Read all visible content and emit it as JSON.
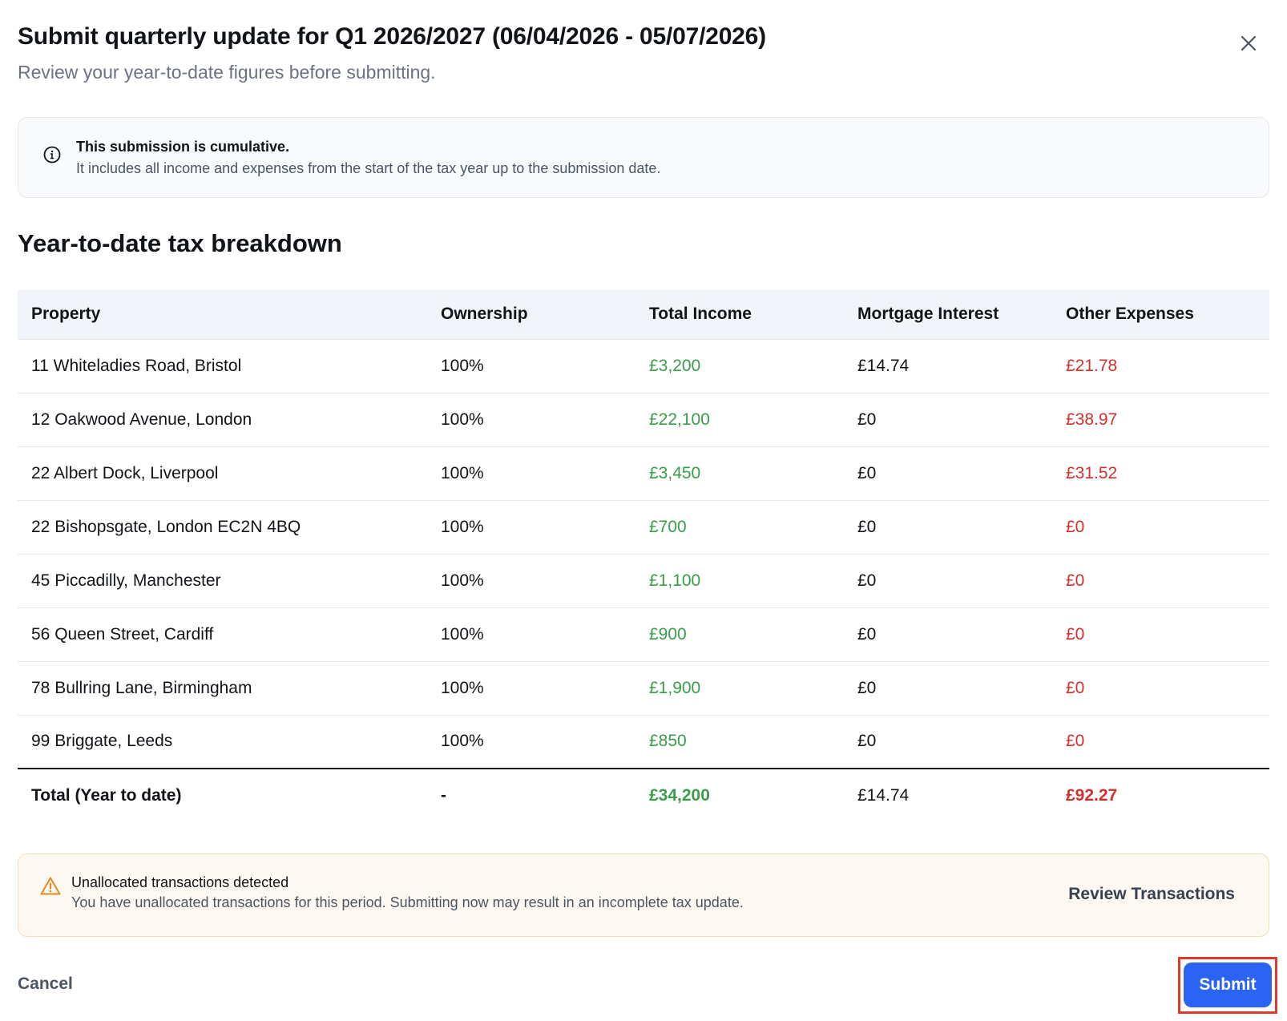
{
  "dialog": {
    "title": "Submit quarterly update for Q1 2026/2027 (06/04/2026 - 05/07/2026)",
    "subtitle": "Review your year-to-date figures before submitting.",
    "close_icon": "close-icon"
  },
  "info": {
    "icon": "info-icon",
    "title": "This submission is cumulative.",
    "text": "It includes all income and expenses from the start of the tax year up to the submission date."
  },
  "breakdown": {
    "heading": "Year-to-date tax breakdown",
    "columns": [
      "Property",
      "Ownership",
      "Total Income",
      "Mortgage Interest",
      "Other Expenses"
    ],
    "rows": [
      {
        "property": "11 Whiteladies Road, Bristol",
        "ownership": "100%",
        "income": "£3,200",
        "mortgage": "£14.74",
        "expenses": "£21.78"
      },
      {
        "property": "12 Oakwood Avenue, London",
        "ownership": "100%",
        "income": "£22,100",
        "mortgage": "£0",
        "expenses": "£38.97"
      },
      {
        "property": "22 Albert Dock, Liverpool",
        "ownership": "100%",
        "income": "£3,450",
        "mortgage": "£0",
        "expenses": "£31.52"
      },
      {
        "property": "22 Bishopsgate, London EC2N 4BQ",
        "ownership": "100%",
        "income": "£700",
        "mortgage": "£0",
        "expenses": "£0"
      },
      {
        "property": "45 Piccadilly, Manchester",
        "ownership": "100%",
        "income": "£1,100",
        "mortgage": "£0",
        "expenses": "£0"
      },
      {
        "property": "56 Queen Street, Cardiff",
        "ownership": "100%",
        "income": "£900",
        "mortgage": "£0",
        "expenses": "£0"
      },
      {
        "property": "78 Bullring Lane, Birmingham",
        "ownership": "100%",
        "income": "£1,900",
        "mortgage": "£0",
        "expenses": "£0"
      },
      {
        "property": "99 Briggate, Leeds",
        "ownership": "100%",
        "income": "£850",
        "mortgage": "£0",
        "expenses": "£0"
      }
    ],
    "total": {
      "label": "Total (Year to date)",
      "ownership": "-",
      "income": "£34,200",
      "mortgage": "£14.74",
      "expenses": "£92.27"
    }
  },
  "warning": {
    "icon": "warning-icon",
    "title": "Unallocated transactions detected",
    "text": "You have unallocated transactions for this period. Submitting now may result in an incomplete tax update.",
    "action_label": "Review Transactions"
  },
  "footer": {
    "cancel_label": "Cancel",
    "submit_label": "Submit"
  },
  "colors": {
    "income": "#3a9d4a",
    "expense": "#d0312d",
    "primary": "#2b63f2",
    "highlight": "#e03a2f"
  }
}
